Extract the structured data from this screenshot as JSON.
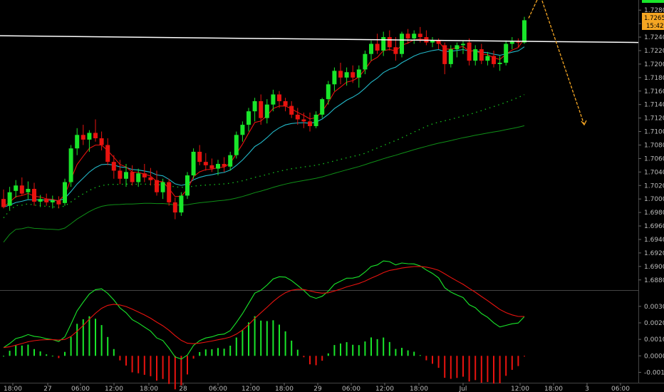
{
  "colors": {
    "background": "#000000",
    "bull_candle": "#19e62a",
    "bear_candle": "#e8130f",
    "ema_fast": "#e8130f",
    "ema_mid": "#23b8c8",
    "sma_dotted": "#15c21e",
    "sma_slow": "#0f8f17",
    "horizontal_line": "#ffffff",
    "projection_arrow": "#f5a623",
    "price_tag_bg": "#f5a623",
    "macd_line": "#19e62a",
    "signal_line": "#e8130f",
    "axis_text": "#bdbdbd"
  },
  "price_tag": {
    "price": "1.72653",
    "timer": "15:42"
  },
  "chart_data": [
    {
      "type": "candlestick",
      "title": "",
      "ylim": [
        1.6866,
        1.7295
      ],
      "y_ticks": [
        "1.72800",
        "1.72600",
        "1.72400",
        "1.72200",
        "1.72000",
        "1.71800",
        "1.71600",
        "1.71400",
        "1.71200",
        "1.71000",
        "1.70800",
        "1.70600",
        "1.70400",
        "1.70200",
        "1.70000",
        "1.69800",
        "1.69600",
        "1.69400",
        "1.69200",
        "1.69000",
        "1.68800"
      ],
      "x_ticks": [
        "18:00",
        "27",
        "06:00",
        "12:00",
        "18:00",
        "28",
        "06:00",
        "12:00",
        "18:00",
        "29",
        "06:00",
        "12:00",
        "18:00",
        "Jul",
        "12:00",
        "18:00",
        "3",
        "06:00"
      ],
      "candles": [
        {
          "t": 0,
          "o": 1.7,
          "h": 1.7014,
          "l": 1.6986,
          "c": 1.6988
        },
        {
          "t": 1,
          "o": 1.699,
          "h": 1.7018,
          "l": 1.6984,
          "c": 1.701
        },
        {
          "t": 2,
          "o": 1.7012,
          "h": 1.7028,
          "l": 1.7002,
          "c": 1.702
        },
        {
          "t": 3,
          "o": 1.702,
          "h": 1.7032,
          "l": 1.7005,
          "c": 1.7008
        },
        {
          "t": 4,
          "o": 1.701,
          "h": 1.7026,
          "l": 1.7,
          "c": 1.7015
        },
        {
          "t": 5,
          "o": 1.7015,
          "h": 1.7024,
          "l": 1.699,
          "c": 1.6996
        },
        {
          "t": 6,
          "o": 1.6996,
          "h": 1.7006,
          "l": 1.6988,
          "c": 1.7
        },
        {
          "t": 7,
          "o": 1.7,
          "h": 1.7008,
          "l": 1.699,
          "c": 1.6995
        },
        {
          "t": 8,
          "o": 1.6995,
          "h": 1.7005,
          "l": 1.6986,
          "c": 1.6998
        },
        {
          "t": 9,
          "o": 1.6998,
          "h": 1.7004,
          "l": 1.6986,
          "c": 1.6992
        },
        {
          "t": 10,
          "o": 1.6994,
          "h": 1.703,
          "l": 1.699,
          "c": 1.7025
        },
        {
          "t": 11,
          "o": 1.7025,
          "h": 1.708,
          "l": 1.7018,
          "c": 1.7075
        },
        {
          "t": 12,
          "o": 1.7075,
          "h": 1.7105,
          "l": 1.7065,
          "c": 1.7095
        },
        {
          "t": 13,
          "o": 1.7095,
          "h": 1.711,
          "l": 1.708,
          "c": 1.7088
        },
        {
          "t": 14,
          "o": 1.7088,
          "h": 1.7102,
          "l": 1.707,
          "c": 1.7098
        },
        {
          "t": 15,
          "o": 1.7098,
          "h": 1.7118,
          "l": 1.7085,
          "c": 1.709
        },
        {
          "t": 16,
          "o": 1.709,
          "h": 1.71,
          "l": 1.7072,
          "c": 1.708
        },
        {
          "t": 17,
          "o": 1.708,
          "h": 1.709,
          "l": 1.705,
          "c": 1.7055
        },
        {
          "t": 18,
          "o": 1.7055,
          "h": 1.7065,
          "l": 1.703,
          "c": 1.7042
        },
        {
          "t": 19,
          "o": 1.7042,
          "h": 1.7058,
          "l": 1.7022,
          "c": 1.703
        },
        {
          "t": 20,
          "o": 1.703,
          "h": 1.7052,
          "l": 1.7018,
          "c": 1.704
        },
        {
          "t": 21,
          "o": 1.704,
          "h": 1.705,
          "l": 1.702,
          "c": 1.7025
        },
        {
          "t": 22,
          "o": 1.7025,
          "h": 1.7045,
          "l": 1.7018,
          "c": 1.7038
        },
        {
          "t": 23,
          "o": 1.7038,
          "h": 1.7052,
          "l": 1.7025,
          "c": 1.7032
        },
        {
          "t": 24,
          "o": 1.7032,
          "h": 1.7046,
          "l": 1.702,
          "c": 1.7028
        },
        {
          "t": 25,
          "o": 1.7028,
          "h": 1.7042,
          "l": 1.7005,
          "c": 1.701
        },
        {
          "t": 26,
          "o": 1.701,
          "h": 1.703,
          "l": 1.7,
          "c": 1.7025
        },
        {
          "t": 27,
          "o": 1.7025,
          "h": 1.703,
          "l": 1.699,
          "c": 1.6995
        },
        {
          "t": 28,
          "o": 1.6995,
          "h": 1.7002,
          "l": 1.697,
          "c": 1.698
        },
        {
          "t": 29,
          "o": 1.698,
          "h": 1.701,
          "l": 1.6975,
          "c": 1.7005
        },
        {
          "t": 30,
          "o": 1.7005,
          "h": 1.704,
          "l": 1.7,
          "c": 1.7035
        },
        {
          "t": 31,
          "o": 1.7035,
          "h": 1.7075,
          "l": 1.703,
          "c": 1.707
        },
        {
          "t": 32,
          "o": 1.707,
          "h": 1.708,
          "l": 1.705,
          "c": 1.7055
        },
        {
          "t": 33,
          "o": 1.7055,
          "h": 1.7068,
          "l": 1.7042,
          "c": 1.705
        },
        {
          "t": 34,
          "o": 1.705,
          "h": 1.706,
          "l": 1.704,
          "c": 1.7045
        },
        {
          "t": 35,
          "o": 1.7045,
          "h": 1.7058,
          "l": 1.7035,
          "c": 1.7052
        },
        {
          "t": 36,
          "o": 1.7052,
          "h": 1.7062,
          "l": 1.704,
          "c": 1.7048
        },
        {
          "t": 37,
          "o": 1.7048,
          "h": 1.707,
          "l": 1.7042,
          "c": 1.7065
        },
        {
          "t": 38,
          "o": 1.7065,
          "h": 1.71,
          "l": 1.706,
          "c": 1.7095
        },
        {
          "t": 39,
          "o": 1.7095,
          "h": 1.7115,
          "l": 1.7085,
          "c": 1.711
        },
        {
          "t": 40,
          "o": 1.711,
          "h": 1.7135,
          "l": 1.71,
          "c": 1.713
        },
        {
          "t": 41,
          "o": 1.713,
          "h": 1.715,
          "l": 1.7115,
          "c": 1.7145
        },
        {
          "t": 42,
          "o": 1.7145,
          "h": 1.7155,
          "l": 1.711,
          "c": 1.712
        },
        {
          "t": 43,
          "o": 1.712,
          "h": 1.7148,
          "l": 1.7112,
          "c": 1.714
        },
        {
          "t": 44,
          "o": 1.714,
          "h": 1.7162,
          "l": 1.713,
          "c": 1.7155
        },
        {
          "t": 45,
          "o": 1.7155,
          "h": 1.716,
          "l": 1.7135,
          "c": 1.7145
        },
        {
          "t": 46,
          "o": 1.7145,
          "h": 1.715,
          "l": 1.713,
          "c": 1.7138
        },
        {
          "t": 47,
          "o": 1.7138,
          "h": 1.7145,
          "l": 1.712,
          "c": 1.7125
        },
        {
          "t": 48,
          "o": 1.7125,
          "h": 1.7135,
          "l": 1.711,
          "c": 1.7118
        },
        {
          "t": 49,
          "o": 1.7118,
          "h": 1.7128,
          "l": 1.7105,
          "c": 1.7115
        },
        {
          "t": 50,
          "o": 1.7115,
          "h": 1.7128,
          "l": 1.71,
          "c": 1.7108
        },
        {
          "t": 51,
          "o": 1.7108,
          "h": 1.713,
          "l": 1.7105,
          "c": 1.7125
        },
        {
          "t": 52,
          "o": 1.7125,
          "h": 1.715,
          "l": 1.712,
          "c": 1.7148
        },
        {
          "t": 53,
          "o": 1.7148,
          "h": 1.7175,
          "l": 1.714,
          "c": 1.717
        },
        {
          "t": 54,
          "o": 1.717,
          "h": 1.7195,
          "l": 1.716,
          "c": 1.719
        },
        {
          "t": 55,
          "o": 1.719,
          "h": 1.7202,
          "l": 1.717,
          "c": 1.718
        },
        {
          "t": 56,
          "o": 1.718,
          "h": 1.7195,
          "l": 1.7168,
          "c": 1.7188
        },
        {
          "t": 57,
          "o": 1.7188,
          "h": 1.7198,
          "l": 1.7172,
          "c": 1.718
        },
        {
          "t": 58,
          "o": 1.718,
          "h": 1.7198,
          "l": 1.7165,
          "c": 1.7192
        },
        {
          "t": 59,
          "o": 1.7192,
          "h": 1.722,
          "l": 1.7185,
          "c": 1.7215
        },
        {
          "t": 60,
          "o": 1.7215,
          "h": 1.7235,
          "l": 1.7205,
          "c": 1.723
        },
        {
          "t": 61,
          "o": 1.723,
          "h": 1.7245,
          "l": 1.7215,
          "c": 1.722
        },
        {
          "t": 62,
          "o": 1.722,
          "h": 1.7248,
          "l": 1.7212,
          "c": 1.724
        },
        {
          "t": 63,
          "o": 1.724,
          "h": 1.725,
          "l": 1.722,
          "c": 1.7225
        },
        {
          "t": 64,
          "o": 1.7225,
          "h": 1.724,
          "l": 1.7205,
          "c": 1.7215
        },
        {
          "t": 65,
          "o": 1.7215,
          "h": 1.7248,
          "l": 1.721,
          "c": 1.7245
        },
        {
          "t": 66,
          "o": 1.7245,
          "h": 1.7252,
          "l": 1.723,
          "c": 1.7238
        },
        {
          "t": 67,
          "o": 1.7238,
          "h": 1.725,
          "l": 1.723,
          "c": 1.7245
        },
        {
          "t": 68,
          "o": 1.7245,
          "h": 1.7255,
          "l": 1.7232,
          "c": 1.724
        },
        {
          "t": 69,
          "o": 1.724,
          "h": 1.725,
          "l": 1.7228,
          "c": 1.7232
        },
        {
          "t": 70,
          "o": 1.7232,
          "h": 1.724,
          "l": 1.7225,
          "c": 1.7235
        },
        {
          "t": 71,
          "o": 1.7235,
          "h": 1.7238,
          "l": 1.7222,
          "c": 1.723
        },
        {
          "t": 72,
          "o": 1.7228,
          "h": 1.7232,
          "l": 1.7185,
          "c": 1.72
        },
        {
          "t": 73,
          "o": 1.72,
          "h": 1.7228,
          "l": 1.7195,
          "c": 1.7222
        },
        {
          "t": 74,
          "o": 1.7222,
          "h": 1.7232,
          "l": 1.721,
          "c": 1.7228
        },
        {
          "t": 75,
          "o": 1.7228,
          "h": 1.7235,
          "l": 1.7215,
          "c": 1.723
        },
        {
          "t": 76,
          "o": 1.7232,
          "h": 1.7238,
          "l": 1.7198,
          "c": 1.7205
        },
        {
          "t": 77,
          "o": 1.7205,
          "h": 1.7228,
          "l": 1.7198,
          "c": 1.7222
        },
        {
          "t": 78,
          "o": 1.7222,
          "h": 1.723,
          "l": 1.72,
          "c": 1.7205
        },
        {
          "t": 79,
          "o": 1.7205,
          "h": 1.7218,
          "l": 1.7198,
          "c": 1.7212
        },
        {
          "t": 80,
          "o": 1.7212,
          "h": 1.722,
          "l": 1.7195,
          "c": 1.72
        },
        {
          "t": 81,
          "o": 1.72,
          "h": 1.7212,
          "l": 1.719,
          "c": 1.7202
        },
        {
          "t": 82,
          "o": 1.7202,
          "h": 1.7235,
          "l": 1.7198,
          "c": 1.723
        },
        {
          "t": 83,
          "o": 1.723,
          "h": 1.724,
          "l": 1.7222,
          "c": 1.7233
        },
        {
          "t": 84,
          "o": 1.7233,
          "h": 1.7238,
          "l": 1.7225,
          "c": 1.7232
        },
        {
          "t": 85,
          "o": 1.7232,
          "h": 1.727,
          "l": 1.723,
          "c": 1.7265
        }
      ],
      "horizontal_line": {
        "start": 1.7242,
        "end": 1.7232
      },
      "projection_arrow": {
        "start": 1.7268,
        "peak": 1.73,
        "end": 1.711
      }
    },
    {
      "type": "macd",
      "title": "",
      "ylim": [
        -0.0015,
        0.0039
      ],
      "y_ticks": [
        "0.0030",
        "0.0020",
        "0.0010",
        "0.0000",
        "-0.0010"
      ]
    }
  ]
}
